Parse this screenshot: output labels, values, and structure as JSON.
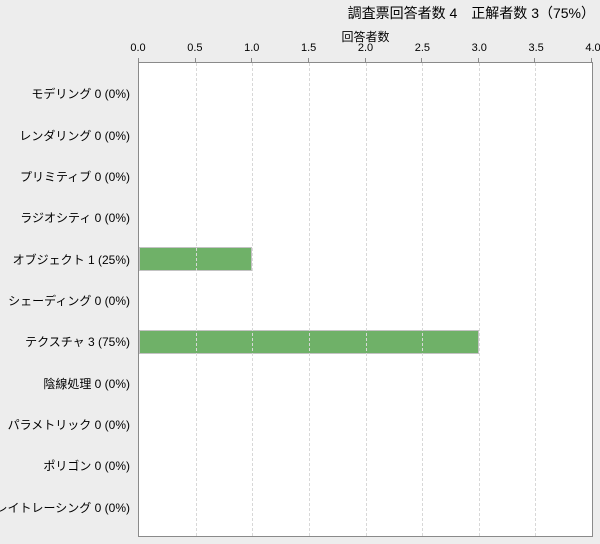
{
  "chart_data": {
    "type": "bar",
    "orientation": "horizontal",
    "title": "調査票回答者数 4　正解者数 3（75%）",
    "xlabel": "回答者数",
    "xlim": [
      0.0,
      4.0
    ],
    "xticks": [
      0.0,
      0.5,
      1.0,
      1.5,
      2.0,
      2.5,
      3.0,
      3.5,
      4.0
    ],
    "grid": "vertical-dashed",
    "legend": "none",
    "categories": [
      "モデリング",
      "レンダリング",
      "プリミティブ",
      "ラジオシティ",
      "オブジェクト",
      "シェーディング",
      "テクスチャ",
      "陰線処理",
      "パラメトリック",
      "ポリゴン",
      "レイトレーシング"
    ],
    "values": [
      0,
      0,
      0,
      0,
      1,
      0,
      3,
      0,
      0,
      0,
      0
    ],
    "percents": [
      "0%",
      "0%",
      "0%",
      "0%",
      "25%",
      "0%",
      "75%",
      "0%",
      "0%",
      "0%",
      "0%"
    ],
    "colors": {
      "bar_fill": "#6fb168",
      "bar_border": "#c3c3c3",
      "background": "#ededed",
      "plot_background": "#ffffff",
      "plot_border": "#8a8a8a",
      "grid_line": "#d8d8d8",
      "text": "#000000"
    }
  }
}
